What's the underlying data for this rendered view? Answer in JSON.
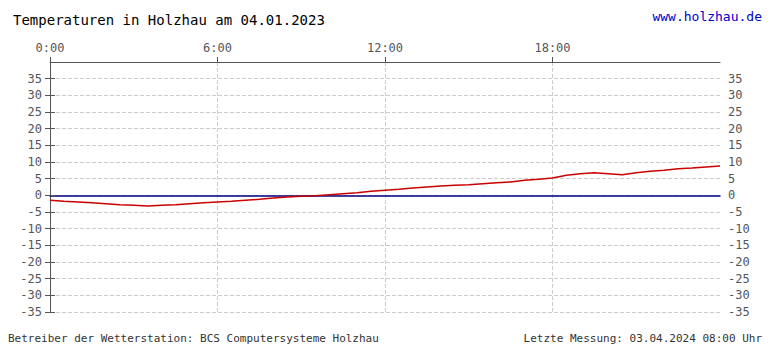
{
  "chart_data": {
    "type": "line",
    "title": "Temperaturen in Holzhau am 04.01.2023",
    "annotations": [
      "www.holzhau.de",
      "Betreiber der Wetterstation: BCS Computersysteme Holzhau",
      "Letzte Messung: 03.04.2024 08:00 Uhr"
    ],
    "xlim": [
      0,
      1440
    ],
    "xticks": [
      {
        "value": 0,
        "label": "0:00"
      },
      {
        "value": 360,
        "label": "6:00"
      },
      {
        "value": 720,
        "label": "12:00"
      },
      {
        "value": 1080,
        "label": "18:00"
      }
    ],
    "ylim": [
      -35,
      40
    ],
    "yticks": [
      -35,
      -30,
      -25,
      -20,
      -15,
      -10,
      -5,
      0,
      5,
      10,
      15,
      20,
      25,
      30,
      35
    ],
    "y2lim": [
      -35,
      40
    ],
    "y2ticks": [
      -35,
      -30,
      -25,
      -20,
      -15,
      -10,
      -5,
      0,
      5,
      10,
      15,
      20,
      25,
      30,
      35
    ],
    "grid": true,
    "color": "#cc0000",
    "x": [
      0,
      30,
      60,
      90,
      120,
      150,
      180,
      210,
      240,
      270,
      300,
      330,
      360,
      390,
      420,
      450,
      480,
      510,
      540,
      570,
      600,
      630,
      660,
      690,
      720,
      750,
      780,
      810,
      840,
      870,
      900,
      930,
      960,
      990,
      1020,
      1050,
      1080,
      1110,
      1140,
      1170,
      1200,
      1230,
      1260,
      1290,
      1320,
      1350,
      1380,
      1410,
      1440
    ],
    "values": [
      -1.5,
      -1.8,
      -2.0,
      -2.2,
      -2.5,
      -2.8,
      -3.0,
      -3.2,
      -3.0,
      -2.8,
      -2.5,
      -2.2,
      -2.0,
      -1.8,
      -1.5,
      -1.2,
      -0.8,
      -0.5,
      -0.3,
      -0.1,
      0.2,
      0.5,
      0.8,
      1.2,
      1.5,
      1.8,
      2.2,
      2.5,
      2.8,
      3.0,
      3.2,
      3.5,
      3.8,
      4.0,
      4.5,
      4.8,
      5.2,
      6.0,
      6.5,
      6.8,
      6.5,
      6.2,
      6.8,
      7.2,
      7.5,
      8.0,
      8.2,
      8.5,
      8.8
    ]
  }
}
